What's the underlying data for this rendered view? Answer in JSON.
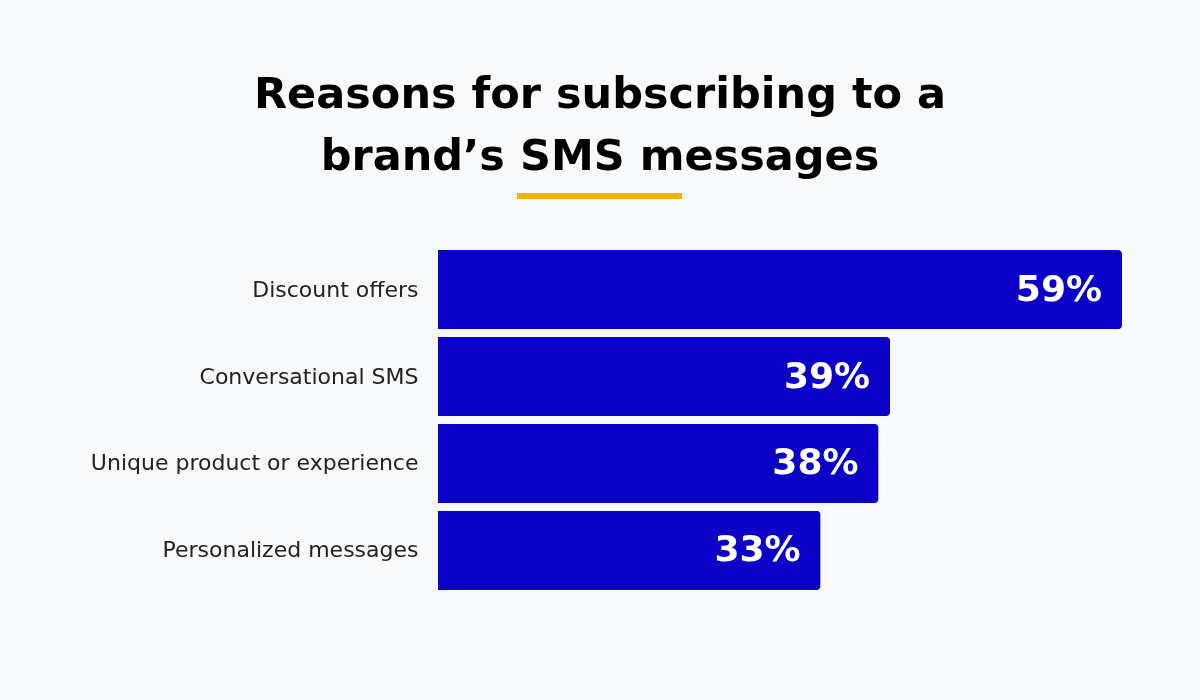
{
  "chart_data": {
    "type": "bar",
    "title": "Reasons for subscribing to a brand’s SMS messages",
    "orientation": "horizontal",
    "categories": [
      "Discount offers",
      "Conversational SMS",
      "Unique product or experience",
      "Personalized messages"
    ],
    "values": [
      59,
      39,
      38,
      33
    ],
    "value_labels": [
      "59%",
      "39%",
      "38%",
      "33%"
    ],
    "color": "#0a00c8"
  }
}
